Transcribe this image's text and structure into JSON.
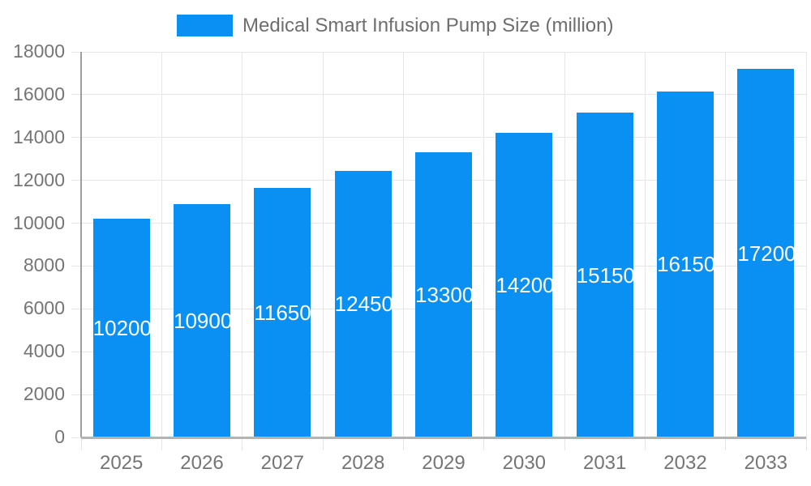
{
  "legend": {
    "series_label": "Medical Smart Infusion Pump Size (million)"
  },
  "chart_data": {
    "type": "bar",
    "title": "Medical Smart Infusion Pump Size (million)",
    "categories": [
      "2025",
      "2026",
      "2027",
      "2028",
      "2029",
      "2030",
      "2031",
      "2032",
      "2033"
    ],
    "values": [
      10200,
      10900,
      11650,
      12450,
      13300,
      14200,
      15150,
      16150,
      17200
    ],
    "bar_labels": [
      "10200",
      "10900",
      "11650",
      "12450",
      "13300",
      "14200",
      "15150",
      "16150",
      "17200"
    ],
    "xlabel": "",
    "ylabel": "",
    "ylim": [
      0,
      18000
    ],
    "ytick_step": 2000,
    "yticks": [
      0,
      2000,
      4000,
      6000,
      8000,
      10000,
      12000,
      14000,
      16000,
      18000
    ],
    "grid": true,
    "legend_position": "top",
    "bar_label_position": "inside-center"
  },
  "colors": {
    "bar": "#0A8FF2",
    "bar_label_text": "#ffffff",
    "legend_text": "#6e6e6e",
    "axis_text": "#757575",
    "gridline": "#e6e6e6",
    "y_axis_line": "#9e9e9e",
    "x_axis_line": "#b3b3b3"
  }
}
